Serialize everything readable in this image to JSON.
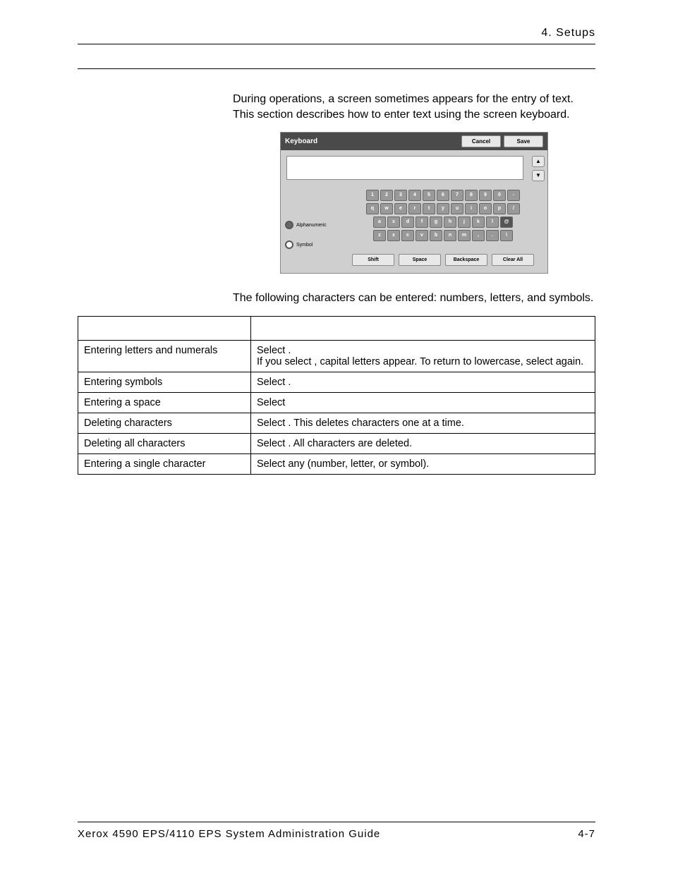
{
  "header": {
    "chapter": "4. Setups"
  },
  "intro": "During operations, a screen sometimes appears for the entry of text. This section describes how to enter text using the screen keyboard.",
  "keyboard_shot": {
    "title": "Keyboard",
    "cancel": "Cancel",
    "save": "Save",
    "radios": {
      "alphanumeric": "Alphanumeric",
      "symbol": "Symbol"
    },
    "rows": {
      "r1": [
        "1",
        "2",
        "3",
        "4",
        "5",
        "6",
        "7",
        "8",
        "9",
        "0",
        "-"
      ],
      "r2": [
        "q",
        "w",
        "e",
        "r",
        "t",
        "y",
        "u",
        "i",
        "o",
        "p",
        "/"
      ],
      "r3": [
        "a",
        "s",
        "d",
        "f",
        "g",
        "h",
        "j",
        "k",
        "l",
        "@"
      ],
      "r4": [
        "z",
        "x",
        "c",
        "v",
        "b",
        "n",
        "m",
        ",",
        ".",
        "\\"
      ]
    },
    "bottom": {
      "shift": "Shift",
      "space": "Space",
      "backspace": "Backspace",
      "clear": "Clear All"
    }
  },
  "outro": "The following characters can be entered: numbers, letters, and symbols.",
  "table": {
    "rows": [
      {
        "item": "Entering letters and numerals",
        "proc_pre": "Select ",
        "proc_mid": ".",
        "proc_line2a": "If you select ",
        "proc_line2b": ", capital letters appear. To return to lowercase, select ",
        "proc_line2c": " again."
      },
      {
        "item": "Entering symbols",
        "proc_pre": "Select ",
        "proc_post": "."
      },
      {
        "item": "Entering a space",
        "proc_pre": "Select "
      },
      {
        "item": "Deleting characters",
        "proc_pre": "Select ",
        "proc_post": ". This deletes characters one at a time."
      },
      {
        "item": "Deleting all characters",
        "proc_pre": "Select ",
        "proc_post": ". All characters are deleted."
      },
      {
        "item": "Entering a single character",
        "proc_pre": "Select any ",
        "proc_post": " (number, letter, or symbol)."
      }
    ]
  },
  "footer": {
    "left": "Xerox 4590 EPS/4110 EPS System Administration Guide",
    "right": "4-7"
  }
}
